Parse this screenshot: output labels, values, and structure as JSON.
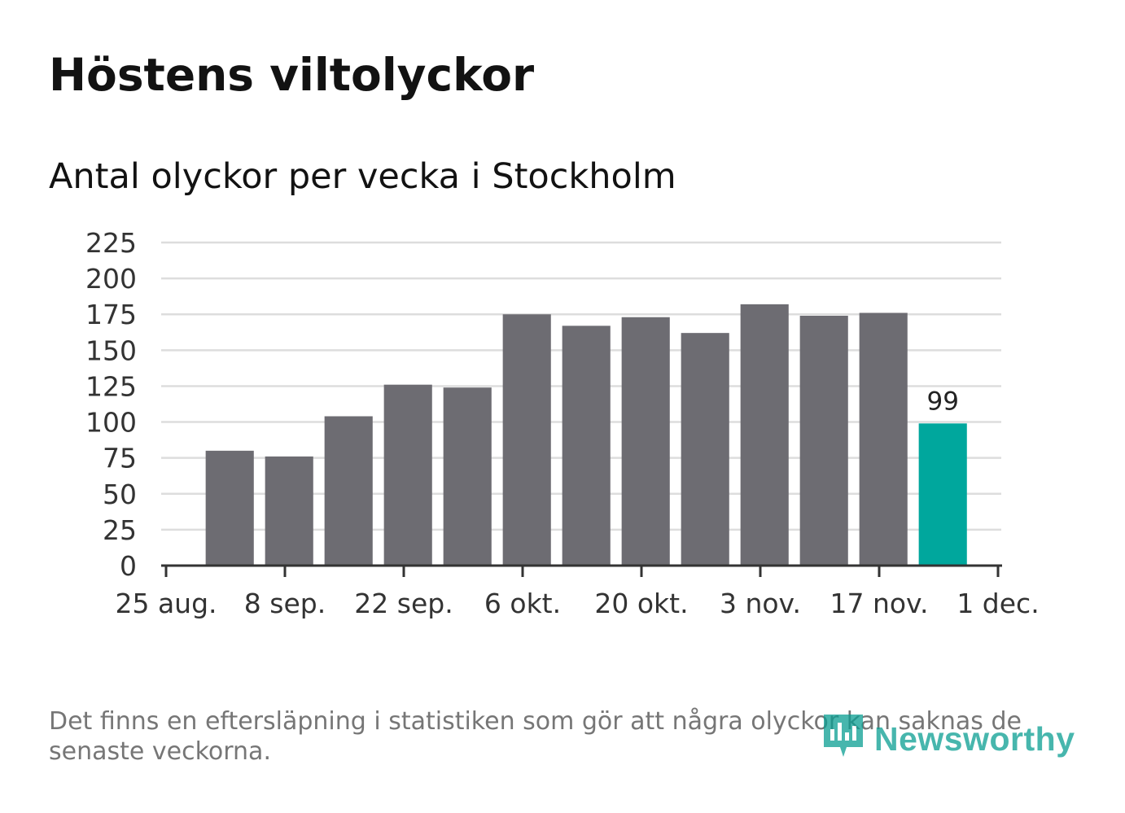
{
  "title": "Höstens viltolyckor",
  "subtitle": "Antal olyckor per vecka i Stockholm",
  "footnote": "Det finns en eftersläpning i statistiken som gör att några olyckor kan saknas de senaste veckorna.",
  "logo": {
    "text": "Newsworthy",
    "icon": "newsworthy-logo-icon"
  },
  "colors": {
    "bar": "#6d6c72",
    "highlight": "#00a79d",
    "grid": "#dddddd",
    "axis": "#333333"
  },
  "chart_data": {
    "type": "bar",
    "title": "Antal olyckor per vecka i Stockholm",
    "xlabel": "",
    "ylabel": "",
    "ylim": [
      0,
      225
    ],
    "yticks": [
      0,
      25,
      50,
      75,
      100,
      125,
      150,
      175,
      200,
      225
    ],
    "xlim_days": [
      0,
      98
    ],
    "xticks": [
      {
        "label": "25 aug.",
        "day": 0
      },
      {
        "label": "8 sep.",
        "day": 14
      },
      {
        "label": "22 sep.",
        "day": 28
      },
      {
        "label": "6 okt.",
        "day": 42
      },
      {
        "label": "20 okt.",
        "day": 56
      },
      {
        "label": "3 nov.",
        "day": 70
      },
      {
        "label": "17 nov.",
        "day": 84
      },
      {
        "label": "1 dec.",
        "day": 98
      }
    ],
    "weeks_start_day": [
      4,
      11,
      18,
      25,
      32,
      39,
      46,
      53,
      60,
      67,
      74,
      81,
      88
    ],
    "values": [
      80,
      76,
      104,
      126,
      124,
      175,
      167,
      173,
      162,
      182,
      174,
      176,
      99
    ],
    "highlight_index": 12,
    "data_labels": [
      {
        "index": 12,
        "text": "99"
      }
    ],
    "grid": true
  }
}
